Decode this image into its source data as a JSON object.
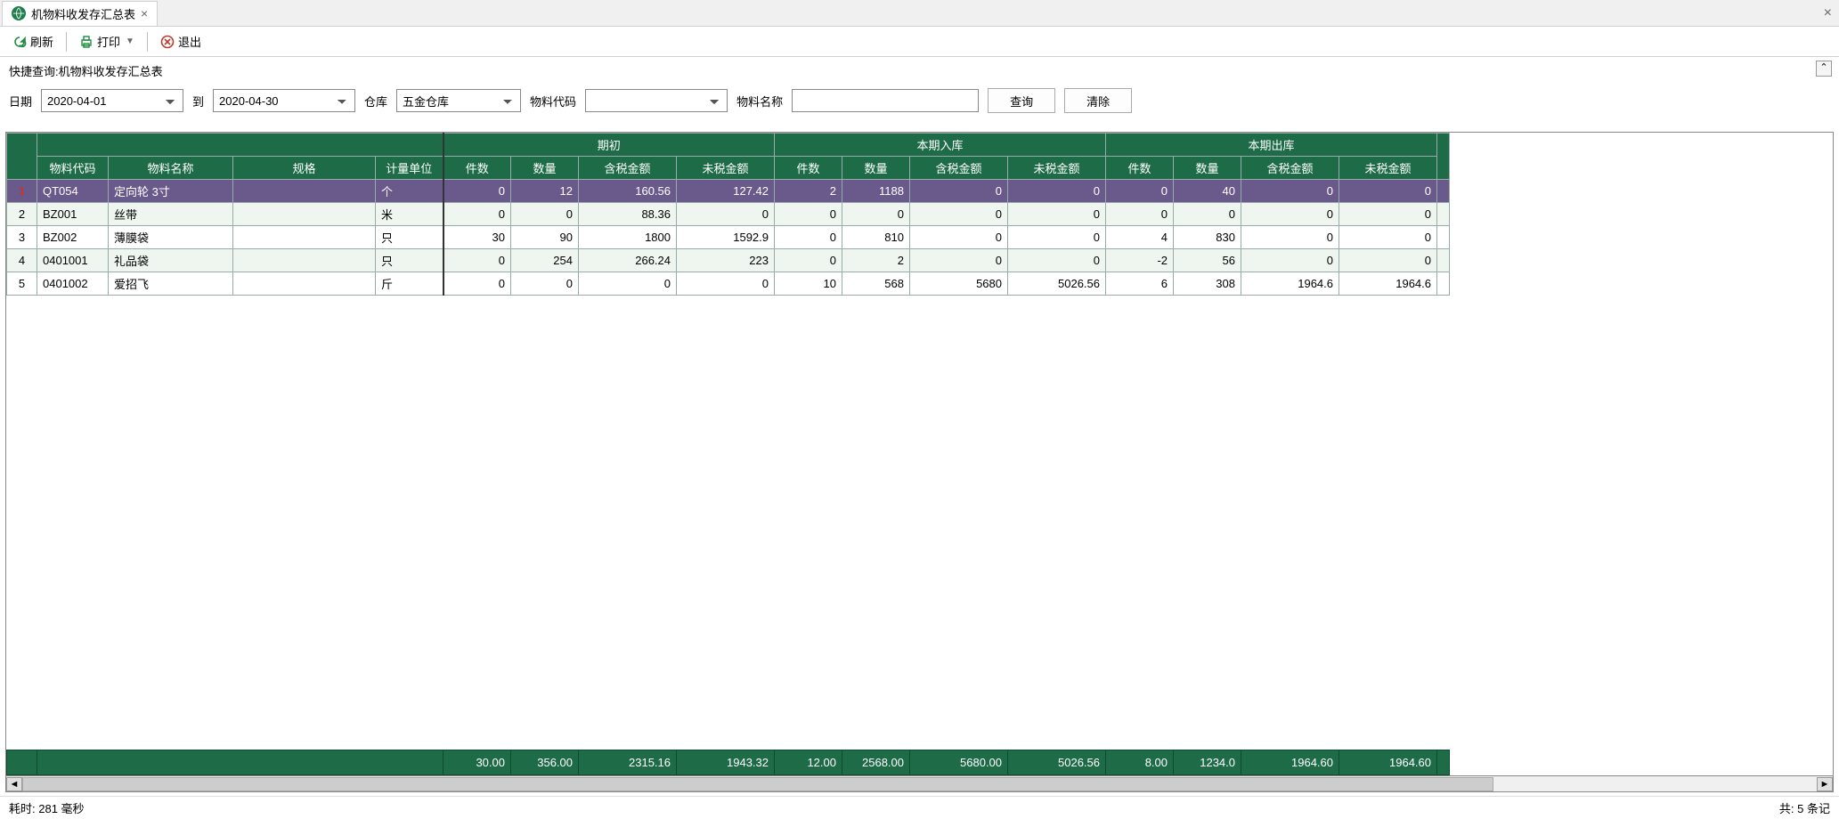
{
  "tab": {
    "title": "机物料收发存汇总表"
  },
  "toolbar": {
    "refresh": "刷新",
    "print": "打印",
    "exit": "退出"
  },
  "query": {
    "title": "快捷查询:机物料收发存汇总表",
    "date_label": "日期",
    "date_from": "2020-04-01",
    "to_label": "到",
    "date_to": "2020-04-30",
    "warehouse_label": "仓库",
    "warehouse": "五金仓库",
    "code_label": "物料代码",
    "code": "",
    "name_label": "物料名称",
    "name": "",
    "search_btn": "查询",
    "clear_btn": "清除"
  },
  "grid": {
    "group_headers": [
      "期初",
      "本期入库",
      "本期出库"
    ],
    "fixed_headers": [
      "物料代码",
      "物料名称",
      "规格",
      "计量单位"
    ],
    "metric_headers": [
      "件数",
      "数量",
      "含税金额",
      "未税金额"
    ],
    "col_widths": {
      "rownum": 34,
      "code": 80,
      "name": 140,
      "spec": 160,
      "unit": 76,
      "pc": 76,
      "qty": 76,
      "amt": 110,
      "net": 110
    },
    "colors": {
      "header_bg": "#1e6b47",
      "header_fg": "#ffffff",
      "row_even": "#eef6ef",
      "row_odd": "#ffffff",
      "selected_bg": "#6a5a8c",
      "selected_fg": "#ffffff",
      "summary_bg": "#1e6b47",
      "summary_fg": "#ffffff"
    },
    "rows": [
      {
        "n": 1,
        "code": "QT054",
        "name": "定向轮 3寸",
        "spec": "",
        "unit": "个",
        "selected": true,
        "qc": [
          0,
          12,
          160.56,
          127.42
        ],
        "rk": [
          2,
          1188,
          0,
          0
        ],
        "ck": [
          0,
          40,
          0,
          0
        ]
      },
      {
        "n": 2,
        "code": "BZ001",
        "name": "丝带",
        "spec": "",
        "unit": "米",
        "qc": [
          0,
          0,
          88.36,
          0
        ],
        "rk": [
          0,
          0,
          0,
          0
        ],
        "ck": [
          0,
          0,
          0,
          0
        ]
      },
      {
        "n": 3,
        "code": "BZ002",
        "name": "薄膜袋",
        "spec": "",
        "unit": "只",
        "qc": [
          30,
          90,
          1800,
          1592.9
        ],
        "rk": [
          0,
          810,
          0,
          0
        ],
        "ck": [
          4,
          830,
          0,
          0
        ]
      },
      {
        "n": 4,
        "code": "0401001",
        "name": "礼品袋",
        "spec": "",
        "unit": "只",
        "qc": [
          0,
          254,
          266.24,
          223
        ],
        "rk": [
          0,
          2,
          0,
          0
        ],
        "ck": [
          -2,
          56,
          0,
          0
        ]
      },
      {
        "n": 5,
        "code": "0401002",
        "name": "爱招飞",
        "spec": "",
        "unit": "斤",
        "qc": [
          0,
          0,
          0,
          0
        ],
        "rk": [
          10,
          568,
          5680,
          5026.56
        ],
        "ck": [
          6,
          308,
          1964.6,
          1964.6
        ]
      }
    ],
    "summary": {
      "qc": [
        "30.00",
        "356.00",
        "2315.16",
        "1943.32"
      ],
      "rk": [
        "12.00",
        "2568.00",
        "5680.00",
        "5026.56"
      ],
      "ck": [
        "8.00",
        "1234.0",
        "1964.60",
        "1964.60"
      ]
    }
  },
  "status": {
    "elapsed_label": "耗时:",
    "elapsed_value": "281 毫秒",
    "total_label": "共:",
    "total_value": "5 条记"
  }
}
